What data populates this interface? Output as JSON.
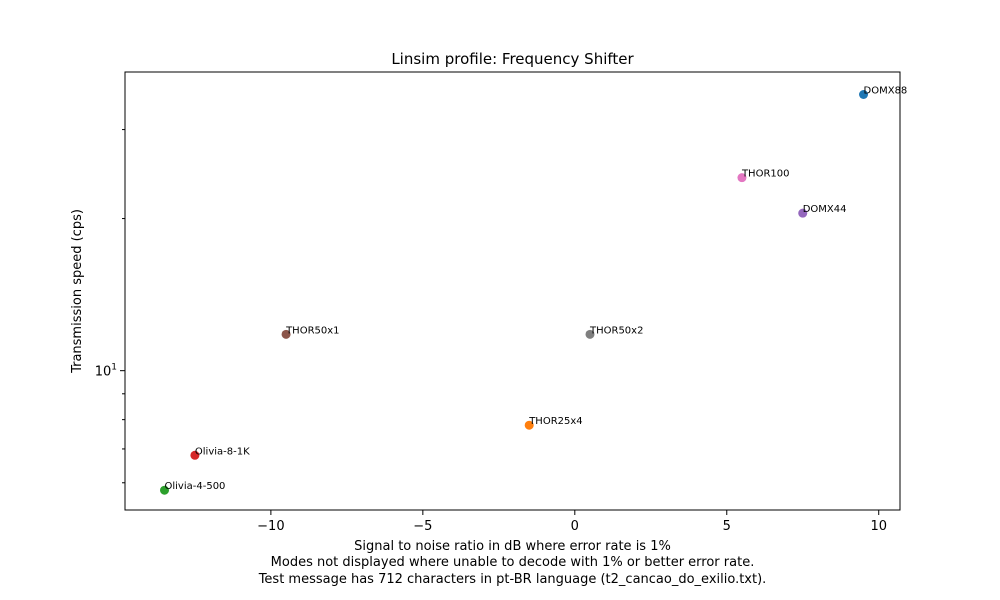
{
  "chart_data": {
    "type": "scatter",
    "title": "Linsim profile: Frequency Shifter",
    "xlabel": "Signal to noise ratio in dB where error rate is 1%",
    "caption_lines": [
      "Modes not displayed where unable to decode with 1% or better error rate.",
      "Test message has 712 characters in pt-BR language (t2_cancao_do_exilio.txt)."
    ],
    "ylabel": "Transmission speed (cps)",
    "xlim": [
      -14.8,
      10.7
    ],
    "ylim": [
      5.3,
      39
    ],
    "yscale": "log",
    "xticks": [
      {
        "value": -10,
        "label": "−10"
      },
      {
        "value": -5,
        "label": "−5"
      },
      {
        "value": 0,
        "label": "0"
      },
      {
        "value": 5,
        "label": "5"
      },
      {
        "value": 10,
        "label": "10"
      }
    ],
    "ytick_major": {
      "value": 10,
      "base": "10",
      "exp": "1"
    },
    "ytick_minor": [
      6,
      7,
      8,
      9,
      20,
      30
    ],
    "grid": false,
    "points": [
      {
        "label": "DOMX88",
        "x": 9.5,
        "y": 35.2,
        "color": "#1f77b4"
      },
      {
        "label": "THOR25x4",
        "x": -1.5,
        "y": 7.8,
        "color": "#ff7f0e"
      },
      {
        "label": "Olivia-4-500",
        "x": -13.5,
        "y": 5.8,
        "color": "#2ca02c"
      },
      {
        "label": "Olivia-8-1K",
        "x": -12.5,
        "y": 6.8,
        "color": "#d62728"
      },
      {
        "label": "DOMX44",
        "x": 7.5,
        "y": 20.5,
        "color": "#9467bd"
      },
      {
        "label": "THOR50x1",
        "x": -9.5,
        "y": 11.8,
        "color": "#8c564b"
      },
      {
        "label": "THOR100",
        "x": 5.5,
        "y": 24.1,
        "color": "#e377c2"
      },
      {
        "label": "THOR50x2",
        "x": 0.5,
        "y": 11.8,
        "color": "#7f7f7f"
      }
    ]
  }
}
